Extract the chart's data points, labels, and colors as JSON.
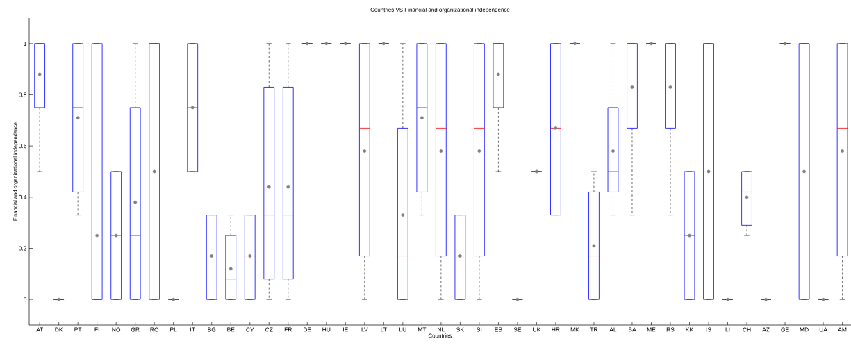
{
  "chart_data": {
    "type": "box",
    "title": "Countries VS Financial and organizational independence",
    "xlabel": "Countries",
    "ylabel": "Financial and organizational independence",
    "categories": [
      "AT",
      "DK",
      "PT",
      "FI",
      "NO",
      "GR",
      "RO",
      "PL",
      "IT",
      "BG",
      "BE",
      "CY",
      "CZ",
      "FR",
      "DE",
      "HU",
      "IE",
      "LV",
      "LT",
      "LU",
      "MT",
      "NL",
      "SK",
      "SI",
      "ES",
      "SE",
      "UK",
      "HR",
      "MK",
      "TR",
      "AL",
      "BA",
      "ME",
      "RS",
      "KK",
      "IS",
      "LI",
      "CH",
      "AZ",
      "GE",
      "MD",
      "UA",
      "AM"
    ],
    "color": "#0000ff",
    "boxes": [
      {
        "low": 0.5,
        "q1": 0.75,
        "median": 1,
        "q3": 1,
        "high": 1,
        "mean": 0.88
      },
      {
        "low": 0,
        "q1": 0,
        "median": 0,
        "q3": 0,
        "high": 0,
        "mean": 0
      },
      {
        "low": 0.33,
        "q1": 0.42,
        "median": 0.75,
        "q3": 1,
        "high": 1,
        "mean": 0.71
      },
      {
        "low": 0,
        "q1": 0,
        "median": 0,
        "q3": 1,
        "high": 1,
        "mean": 0.25
      },
      {
        "low": 0,
        "q1": 0,
        "median": 0.25,
        "q3": 0.5,
        "high": 0.5,
        "mean": 0.25
      },
      {
        "low": 0,
        "q1": 0,
        "median": 0.25,
        "q3": 0.75,
        "high": 1,
        "mean": 0.38
      },
      {
        "low": 0,
        "q1": 0,
        "median": 1,
        "q3": 1,
        "high": 1,
        "mean": 0.5
      },
      {
        "low": 0,
        "q1": 0,
        "median": 0,
        "q3": 0,
        "high": 0,
        "mean": 0
      },
      {
        "low": 0.5,
        "q1": 0.5,
        "median": 0.75,
        "q3": 1,
        "high": 1,
        "mean": 0.75
      },
      {
        "low": 0,
        "q1": 0,
        "median": 0.17,
        "q3": 0.33,
        "high": 0.33,
        "mean": 0.17
      },
      {
        "low": 0,
        "q1": 0,
        "median": 0.08,
        "q3": 0.25,
        "high": 0.33,
        "mean": 0.12
      },
      {
        "low": 0,
        "q1": 0,
        "median": 0.17,
        "q3": 0.33,
        "high": 0.33,
        "mean": 0.17
      },
      {
        "low": 0,
        "q1": 0.08,
        "median": 0.33,
        "q3": 0.83,
        "high": 1,
        "mean": 0.44
      },
      {
        "low": 0,
        "q1": 0.08,
        "median": 0.33,
        "q3": 0.83,
        "high": 1,
        "mean": 0.44
      },
      {
        "low": 1,
        "q1": 1,
        "median": 1,
        "q3": 1,
        "high": 1,
        "mean": 1
      },
      {
        "low": 1,
        "q1": 1,
        "median": 1,
        "q3": 1,
        "high": 1,
        "mean": 1
      },
      {
        "low": 1,
        "q1": 1,
        "median": 1,
        "q3": 1,
        "high": 1,
        "mean": 1
      },
      {
        "low": 0,
        "q1": 0.17,
        "median": 0.67,
        "q3": 1,
        "high": 1,
        "mean": 0.58
      },
      {
        "low": 1,
        "q1": 1,
        "median": 1,
        "q3": 1,
        "high": 1,
        "mean": 1
      },
      {
        "low": 0,
        "q1": 0,
        "median": 0.17,
        "q3": 0.67,
        "high": 1,
        "mean": 0.33
      },
      {
        "low": 0.33,
        "q1": 0.42,
        "median": 0.75,
        "q3": 1,
        "high": 1,
        "mean": 0.71
      },
      {
        "low": 0,
        "q1": 0.17,
        "median": 0.67,
        "q3": 1,
        "high": 1,
        "mean": 0.58
      },
      {
        "low": 0,
        "q1": 0,
        "median": 0.17,
        "q3": 0.33,
        "high": 0.33,
        "mean": 0.17
      },
      {
        "low": 0,
        "q1": 0.17,
        "median": 0.67,
        "q3": 1,
        "high": 1,
        "mean": 0.58
      },
      {
        "low": 0.5,
        "q1": 0.75,
        "median": 1,
        "q3": 1,
        "high": 1,
        "mean": 0.88
      },
      {
        "low": 0,
        "q1": 0,
        "median": 0,
        "q3": 0,
        "high": 0,
        "mean": 0
      },
      {
        "low": 0.5,
        "q1": 0.5,
        "median": 0.5,
        "q3": 0.5,
        "high": 0.5,
        "mean": 0.5
      },
      {
        "low": 0.33,
        "q1": 0.33,
        "median": 0.67,
        "q3": 1,
        "high": 1,
        "mean": 0.67
      },
      {
        "low": 1,
        "q1": 1,
        "median": 1,
        "q3": 1,
        "high": 1,
        "mean": 1
      },
      {
        "low": 0,
        "q1": 0,
        "median": 0.17,
        "q3": 0.42,
        "high": 0.5,
        "mean": 0.21
      },
      {
        "low": 0.33,
        "q1": 0.42,
        "median": 0.5,
        "q3": 0.75,
        "high": 1,
        "mean": 0.58
      },
      {
        "low": 0.33,
        "q1": 0.67,
        "median": 1,
        "q3": 1,
        "high": 1,
        "mean": 0.83
      },
      {
        "low": 1,
        "q1": 1,
        "median": 1,
        "q3": 1,
        "high": 1,
        "mean": 1
      },
      {
        "low": 0.33,
        "q1": 0.67,
        "median": 1,
        "q3": 1,
        "high": 1,
        "mean": 0.83
      },
      {
        "low": 0,
        "q1": 0,
        "median": 0.25,
        "q3": 0.5,
        "high": 0.5,
        "mean": 0.25
      },
      {
        "low": 0,
        "q1": 0,
        "median": 1,
        "q3": 1,
        "high": 1,
        "mean": 0.5
      },
      {
        "low": 0,
        "q1": 0,
        "median": 0,
        "q3": 0,
        "high": 0,
        "mean": 0
      },
      {
        "low": 0.25,
        "q1": 0.29,
        "median": 0.42,
        "q3": 0.5,
        "high": 0.5,
        "mean": 0.4
      },
      {
        "low": 0,
        "q1": 0,
        "median": 0,
        "q3": 0,
        "high": 0,
        "mean": 0
      },
      {
        "low": 1,
        "q1": 1,
        "median": 1,
        "q3": 1,
        "high": 1,
        "mean": 1
      },
      {
        "low": 0,
        "q1": 0,
        "median": 1,
        "q3": 1,
        "high": 1,
        "mean": 0.5
      },
      {
        "low": 0,
        "q1": 0,
        "median": 0,
        "q3": 0,
        "high": 0,
        "mean": 0
      },
      {
        "low": 0,
        "q1": 0.17,
        "median": 0.67,
        "q3": 1,
        "high": 1,
        "mean": 0.58
      }
    ],
    "ylim": [
      -0.1,
      1.1
    ],
    "yticks": [
      0,
      0.2,
      0.4,
      0.6,
      0.8,
      1
    ],
    "grid": false
  }
}
